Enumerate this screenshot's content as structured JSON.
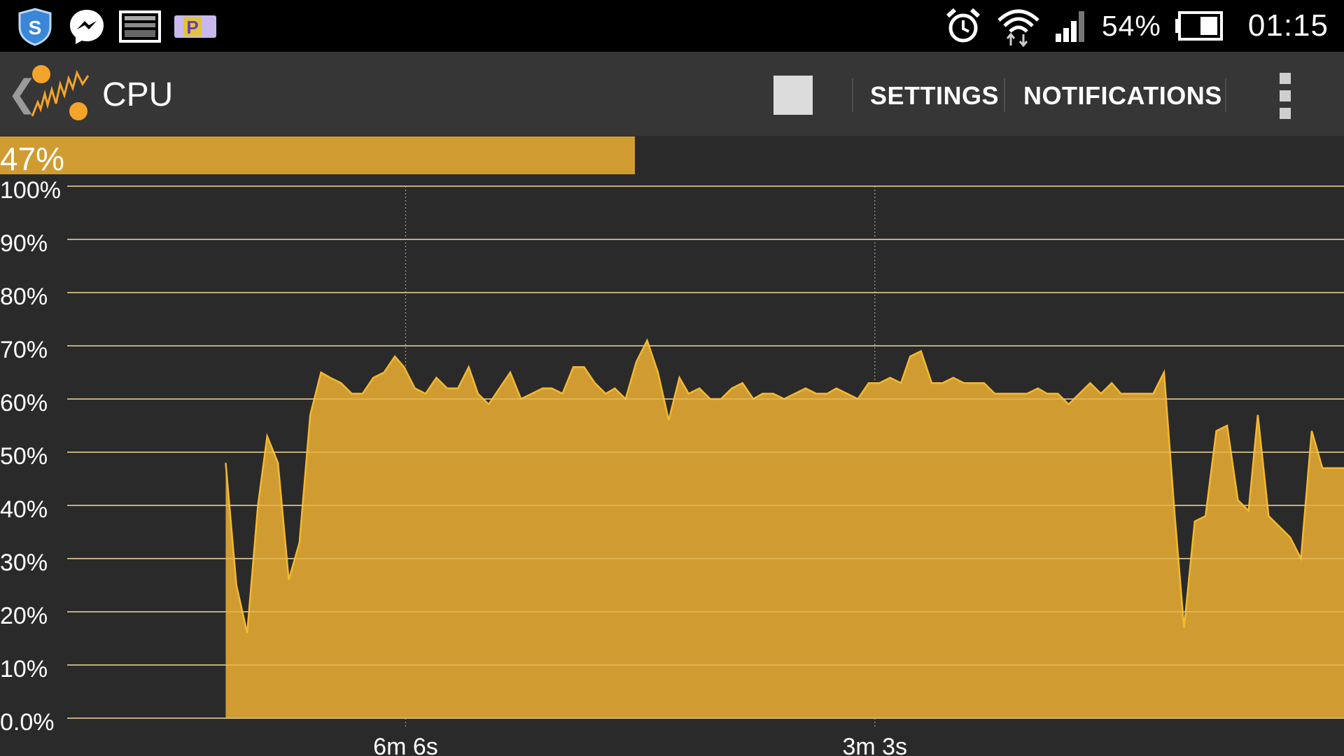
{
  "status_bar": {
    "icons_left": [
      "shield-app-icon",
      "messenger-icon",
      "image-gallery-icon",
      "p-badge-icon"
    ],
    "icons_right": [
      "alarm-icon",
      "wifi-icon",
      "signal-icon",
      "battery-icon"
    ],
    "battery": "54%",
    "time": "01:15"
  },
  "action_bar": {
    "title": "CPU",
    "settings_label": "SETTINGS",
    "notifications_label": "NOTIFICATIONS"
  },
  "current": {
    "value_label": "47%",
    "fraction": 0.47
  },
  "colors": {
    "accent": "#d09c32",
    "background": "#2a2a2a",
    "toolbar": "#363636",
    "gridline": "#ffffff"
  },
  "chart_data": {
    "type": "area",
    "ylim": [
      0,
      100
    ],
    "y_ticks": [
      "0.0%",
      "10%",
      "20%",
      "30%",
      "40%",
      "50%",
      "60%",
      "70%",
      "80%",
      "90%",
      "100%"
    ],
    "x_ticks": [
      "6m 6s",
      "3m 3s"
    ],
    "x_tick_positions": [
      6.1,
      3.05
    ],
    "x_range": [
      8.3,
      0
    ],
    "x": [
      7.27,
      7.2,
      7.13,
      7.06,
      7.0,
      6.93,
      6.86,
      6.79,
      6.72,
      6.65,
      6.59,
      6.52,
      6.45,
      6.38,
      6.31,
      6.24,
      6.17,
      6.11,
      6.04,
      5.97,
      5.9,
      5.83,
      5.76,
      5.69,
      5.63,
      5.56,
      5.49,
      5.42,
      5.35,
      5.28,
      5.21,
      5.15,
      5.08,
      5.01,
      4.94,
      4.87,
      4.8,
      4.74,
      4.67,
      4.6,
      4.53,
      4.46,
      4.39,
      4.32,
      4.26,
      4.19,
      4.12,
      4.05,
      3.98,
      3.91,
      3.84,
      3.78,
      3.71,
      3.64,
      3.57,
      3.5,
      3.43,
      3.36,
      3.3,
      3.23,
      3.16,
      3.09,
      3.02,
      2.95,
      2.88,
      2.82,
      2.75,
      2.68,
      2.61,
      2.54,
      2.47,
      2.41,
      2.34,
      2.27,
      2.2,
      2.13,
      2.06,
      1.99,
      1.93,
      1.86,
      1.79,
      1.72,
      1.65,
      1.58,
      1.51,
      1.45,
      1.38,
      1.31,
      1.24,
      1.17,
      1.1,
      1.04,
      0.97,
      0.9,
      0.83,
      0.76,
      0.69,
      0.62,
      0.56,
      0.49,
      0.42,
      0.35,
      0.28,
      0.21,
      0.14,
      0.08,
      0.01,
      0.0
    ],
    "values": [
      48,
      25,
      16,
      40,
      53,
      48,
      26,
      33,
      57,
      65,
      64,
      63,
      61,
      61,
      64,
      65,
      68,
      66,
      62,
      61,
      64,
      62,
      62,
      66,
      61,
      59,
      62,
      65,
      60,
      61,
      62,
      62,
      61,
      66,
      66,
      63,
      61,
      62,
      60,
      67,
      71,
      65,
      56,
      64,
      61,
      62,
      60,
      60,
      62,
      63,
      60,
      61,
      61,
      60,
      61,
      62,
      61,
      61,
      62,
      61,
      60,
      63,
      63,
      64,
      63,
      68,
      69,
      63,
      63,
      64,
      63,
      63,
      63,
      61,
      61,
      61,
      61,
      62,
      61,
      61,
      59,
      61,
      63,
      61,
      63,
      61,
      61,
      61,
      61,
      65,
      38,
      17,
      37,
      38,
      54,
      55,
      41,
      39,
      57,
      38,
      36,
      34,
      30,
      54,
      47,
      47,
      47,
      47
    ]
  }
}
